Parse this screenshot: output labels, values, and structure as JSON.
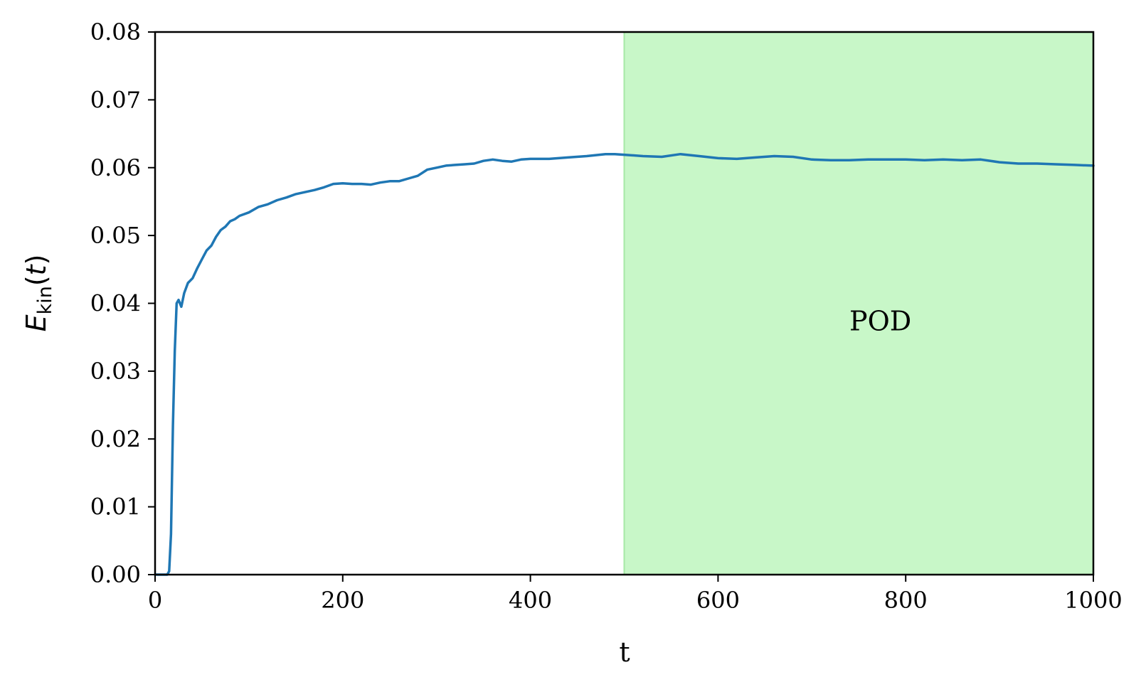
{
  "chart_data": {
    "type": "line",
    "xlabel": "t",
    "ylabel": {
      "main": "E",
      "sub": "kin",
      "paren_open": "(",
      "var": "t",
      "paren_close": ")"
    },
    "xlim": [
      0,
      1000
    ],
    "ylim": [
      0,
      0.08
    ],
    "xticks": [
      "0",
      "200",
      "400",
      "600",
      "800",
      "1000"
    ],
    "yticks": [
      "0.00",
      "0.01",
      "0.02",
      "0.03",
      "0.04",
      "0.05",
      "0.06",
      "0.07",
      "0.08"
    ],
    "grid": false,
    "shaded_region": {
      "x_start": 500,
      "x_end": 1000,
      "label": "POD",
      "label_x": 740,
      "label_y": 0.036,
      "color": "#c8f7c8"
    },
    "series": [
      {
        "color": "#1f77b4",
        "x": [
          0,
          13,
          15,
          17,
          19,
          21,
          23,
          25,
          28,
          31,
          35,
          40,
          45,
          50,
          55,
          60,
          65,
          70,
          75,
          80,
          85,
          90,
          100,
          110,
          120,
          130,
          140,
          150,
          160,
          170,
          180,
          190,
          200,
          210,
          220,
          230,
          240,
          250,
          260,
          270,
          280,
          290,
          300,
          310,
          320,
          330,
          340,
          350,
          360,
          370,
          380,
          390,
          400,
          420,
          440,
          460,
          480,
          490,
          500,
          520,
          540,
          560,
          580,
          600,
          620,
          640,
          660,
          680,
          700,
          720,
          740,
          760,
          780,
          800,
          820,
          840,
          860,
          880,
          900,
          920,
          940,
          960,
          980,
          1000
        ],
        "y": [
          0.0,
          0.0,
          0.0005,
          0.006,
          0.022,
          0.033,
          0.04,
          0.0405,
          0.0395,
          0.0415,
          0.043,
          0.0437,
          0.0452,
          0.0465,
          0.0478,
          0.0485,
          0.0498,
          0.0508,
          0.0513,
          0.0521,
          0.0524,
          0.0529,
          0.0534,
          0.0542,
          0.0546,
          0.0552,
          0.0556,
          0.0561,
          0.0564,
          0.0567,
          0.0571,
          0.0576,
          0.0577,
          0.0576,
          0.0576,
          0.0575,
          0.0578,
          0.058,
          0.058,
          0.0584,
          0.0588,
          0.0597,
          0.06,
          0.0603,
          0.0604,
          0.0605,
          0.0606,
          0.061,
          0.0612,
          0.061,
          0.0609,
          0.0612,
          0.0613,
          0.0613,
          0.0615,
          0.0617,
          0.062,
          0.062,
          0.0619,
          0.0617,
          0.0616,
          0.062,
          0.0617,
          0.0614,
          0.0613,
          0.0615,
          0.0617,
          0.0616,
          0.0612,
          0.0611,
          0.0611,
          0.0612,
          0.0612,
          0.0612,
          0.0611,
          0.0612,
          0.0611,
          0.0612,
          0.0608,
          0.0606,
          0.0606,
          0.0605,
          0.0604,
          0.0603
        ]
      }
    ]
  }
}
